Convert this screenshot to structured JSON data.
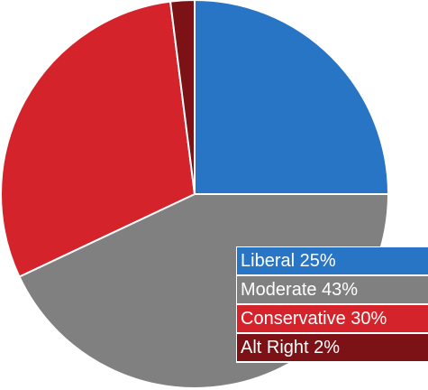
{
  "chart_data": {
    "type": "pie",
    "title": "",
    "slices": [
      {
        "label": "Liberal",
        "value": 25,
        "display": "Liberal 25%",
        "color": "#2775c4"
      },
      {
        "label": "Moderate",
        "value": 43,
        "display": "Moderate 43%",
        "color": "#808080"
      },
      {
        "label": "Conservative",
        "value": 30,
        "display": "Conservative 30%",
        "color": "#d5232b"
      },
      {
        "label": "Alt Right",
        "value": 2,
        "display": "Alt Right 2%",
        "color": "#7d1216"
      }
    ],
    "start_angle": "12 o'clock",
    "direction": "clockwise",
    "legend_placement": "bottom-right"
  }
}
